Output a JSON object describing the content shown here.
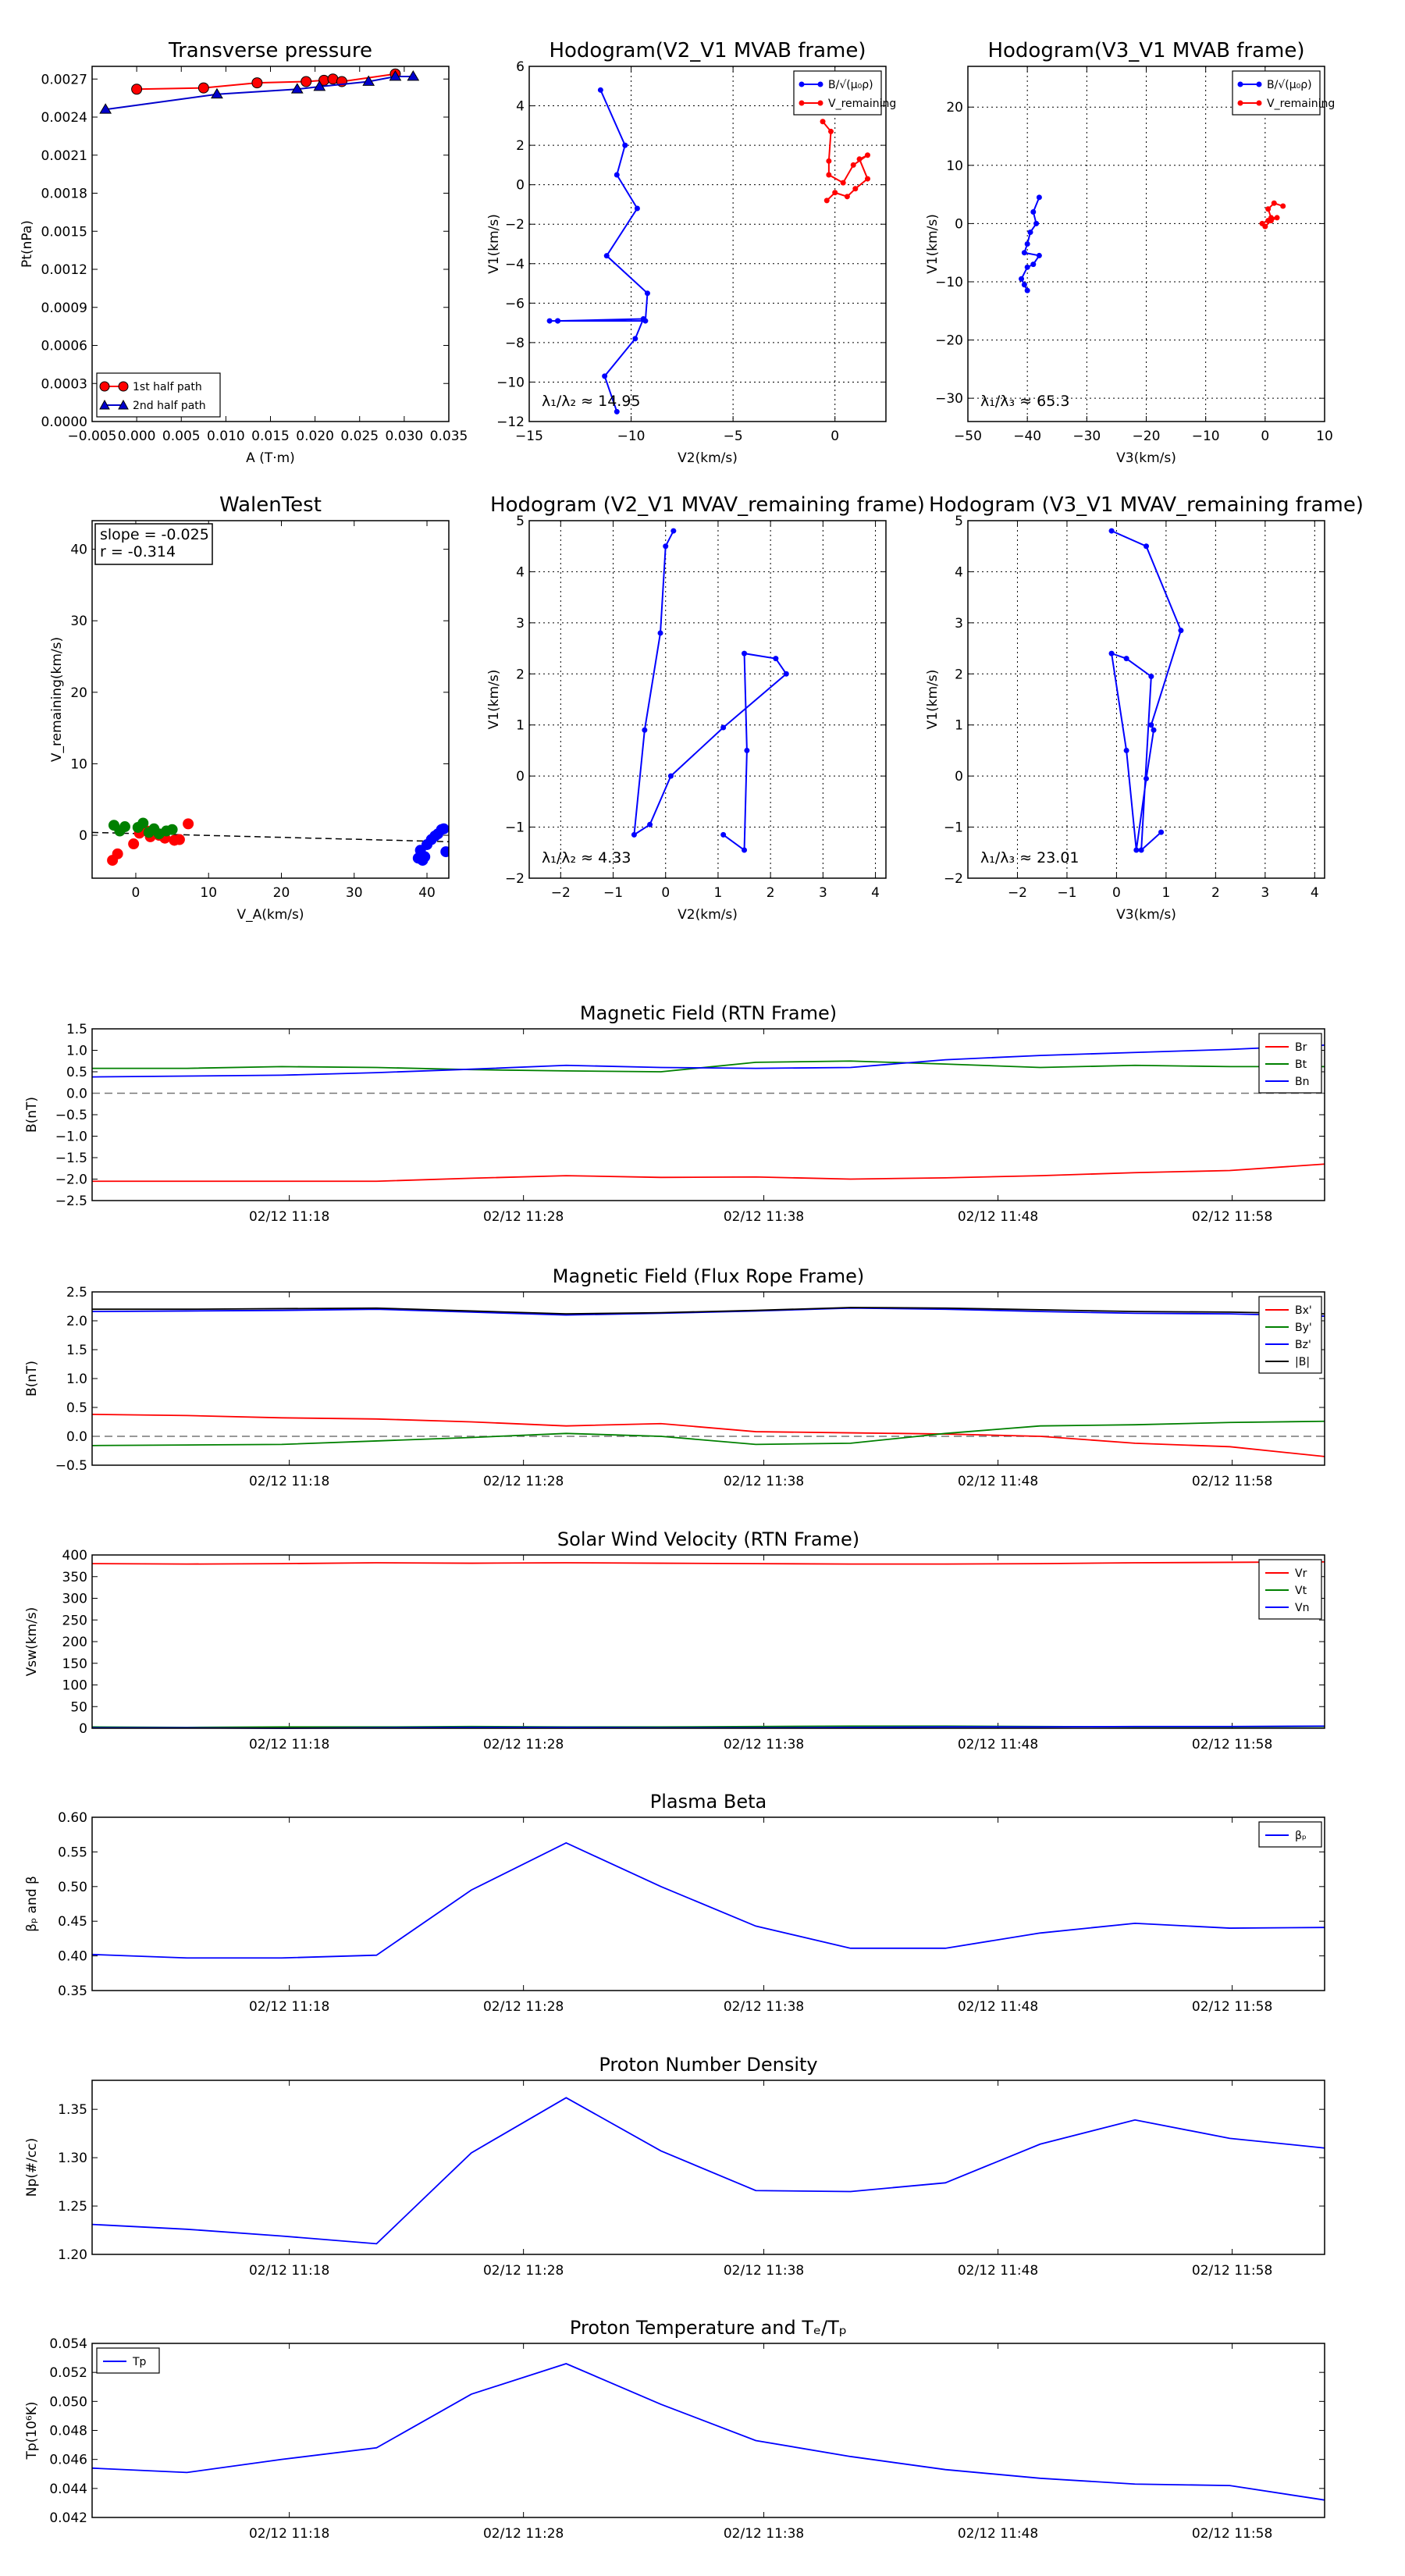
{
  "chart_data": [
    {
      "id": "tp",
      "type": "scatter",
      "title": "Transverse pressure",
      "xlabel": "A (T·m)",
      "ylabel": "Pt(nPa)",
      "xlim": [
        -0.005,
        0.035
      ],
      "ylim": [
        0.0,
        0.0028
      ],
      "xticks": [
        "−0.005",
        "0.000",
        "0.005",
        "0.010",
        "0.015",
        "0.020",
        "0.025",
        "0.030",
        "0.035"
      ],
      "yticks": [
        "0.0000",
        "0.0003",
        "0.0006",
        "0.0009",
        "0.0012",
        "0.0015",
        "0.0018",
        "0.0021",
        "0.0024",
        "0.0027"
      ],
      "legend": [
        "1st half path",
        "2nd half path"
      ],
      "series": [
        {
          "name": "1st half path",
          "color": "#ff0000",
          "marker": "circle",
          "x": [
            0.0,
            0.0075,
            0.0135,
            0.019,
            0.021,
            0.022,
            0.023,
            0.029
          ],
          "y": [
            0.00262,
            0.00263,
            0.00267,
            0.00268,
            0.00269,
            0.0027,
            0.00268,
            0.00274
          ]
        },
        {
          "name": "2nd half path",
          "color": "#0000cc",
          "marker": "triangle",
          "x": [
            -0.0035,
            0.009,
            0.018,
            0.0205,
            0.026,
            0.029,
            0.031
          ],
          "y": [
            0.00246,
            0.00258,
            0.00262,
            0.00264,
            0.00268,
            0.00272,
            0.00272
          ]
        }
      ]
    },
    {
      "id": "h1",
      "type": "line",
      "title": "Hodogram(V2_V1 MVAB frame)",
      "xlabel": "V2(km/s)",
      "ylabel": "V1(km/s)",
      "xlim": [
        -15,
        2.5
      ],
      "ylim": [
        -12,
        6
      ],
      "xticks": [
        "−15",
        "−10",
        "−5",
        "0"
      ],
      "yticks": [
        "−12",
        "−10",
        "−8",
        "−6",
        "−4",
        "−2",
        "0",
        "2",
        "4",
        "6"
      ],
      "annotation": "λ₁/λ₂ ≈ 14.95",
      "legend": [
        "B/√(μ₀ρ)",
        "V_remaining"
      ],
      "series": [
        {
          "name": "B/√(μ₀ρ)",
          "color": "#0000ff",
          "x": [
            -11.5,
            -10.3,
            -10.7,
            -9.7,
            -11.2,
            -9.2,
            -9.3,
            -13.6,
            -14.0,
            -13.6,
            -9.4,
            -9.8,
            -11.3,
            -10.7
          ],
          "y": [
            4.8,
            2.0,
            0.5,
            -1.2,
            -3.6,
            -5.5,
            -6.9,
            -6.9,
            -6.9,
            -6.9,
            -6.8,
            -7.8,
            -9.7,
            -11.5
          ]
        },
        {
          "name": "V_remaining",
          "color": "#ff0000",
          "x": [
            -0.6,
            -0.2,
            -0.3,
            -0.3,
            0.4,
            0.9,
            1.6,
            1.2,
            1.6,
            1.0,
            0.6,
            0.0,
            -0.4
          ],
          "y": [
            3.2,
            2.7,
            1.2,
            0.5,
            0.1,
            1.0,
            1.5,
            1.3,
            0.3,
            -0.2,
            -0.6,
            -0.4,
            -0.8
          ]
        }
      ]
    },
    {
      "id": "h2",
      "type": "line",
      "title": "Hodogram(V3_V1 MVAB frame)",
      "xlabel": "V3(km/s)",
      "ylabel": "V1(km/s)",
      "xlim": [
        -50,
        10
      ],
      "ylim": [
        -34,
        27
      ],
      "xticks": [
        "−50",
        "−40",
        "−30",
        "−20",
        "−10",
        "0",
        "10"
      ],
      "yticks": [
        "−30",
        "−20",
        "−10",
        "0",
        "10",
        "20"
      ],
      "annotation": "λ₁/λ₃ ≈ 65.3",
      "legend": [
        "B/√(μ₀ρ)",
        "V_remaining"
      ],
      "series": [
        {
          "name": "B/√(μ₀ρ)",
          "color": "#0000ff",
          "x": [
            -38,
            -39,
            -38.5,
            -39.5,
            -40,
            -40.5,
            -38,
            -39,
            -40,
            -41,
            -40.5,
            -40
          ],
          "y": [
            4.5,
            2,
            0,
            -1.5,
            -3.5,
            -5,
            -5.5,
            -7,
            -7.5,
            -9.5,
            -10.5,
            -11.5
          ]
        },
        {
          "name": "V_remaining",
          "color": "#ff0000",
          "x": [
            3,
            1.5,
            0.5,
            1,
            2,
            1,
            0,
            -0.5,
            0.5
          ],
          "y": [
            3,
            3.5,
            2.5,
            1,
            1,
            0.5,
            -0.5,
            0,
            0.5
          ]
        }
      ]
    },
    {
      "id": "walen",
      "type": "scatter",
      "title": "WalenTest",
      "xlabel": "V_A(km/s)",
      "ylabel": "V_remaining(km/s)",
      "xlim": [
        -6,
        43
      ],
      "ylim": [
        -6,
        44
      ],
      "xticks": [
        "0",
        "10",
        "20",
        "30",
        "40"
      ],
      "yticks": [
        "0",
        "10",
        "20",
        "30",
        "40"
      ],
      "box_lines": [
        "slope = -0.025",
        "r = -0.314"
      ],
      "fit": {
        "x": [
          -6,
          43
        ],
        "y": [
          0.4,
          -0.9
        ]
      },
      "series": [
        {
          "name": "red",
          "color": "#ff0000",
          "x": [
            -3.2,
            -2.5,
            -0.3,
            0.5,
            1.5,
            2.0,
            3.2,
            4.0,
            5.3,
            6.0,
            7.2
          ],
          "y": [
            -3.5,
            -2.6,
            -1.2,
            0.3,
            0.6,
            -0.2,
            0.0,
            -0.4,
            -0.7,
            -0.6,
            1.6
          ]
        },
        {
          "name": "green",
          "color": "#008000",
          "x": [
            -3.0,
            -2.2,
            -1.5,
            0.3,
            1.0,
            1.8,
            2.5,
            3.2,
            4.2,
            5.0
          ],
          "y": [
            1.4,
            0.6,
            1.2,
            1.1,
            1.7,
            0.4,
            0.9,
            0.2,
            0.6,
            0.8
          ]
        },
        {
          "name": "blue",
          "color": "#0000ff",
          "x": [
            38.8,
            39.1,
            39.7,
            40.0,
            40.6,
            41.1,
            41.5,
            42.0,
            42.3,
            42.6,
            39.4
          ],
          "y": [
            -3.2,
            -2.1,
            -3.0,
            -1.3,
            -0.6,
            -0.1,
            0.2,
            0.8,
            0.9,
            -2.3,
            -3.5
          ]
        }
      ]
    },
    {
      "id": "h3",
      "type": "line",
      "title": "Hodogram (V2_V1 MVAV_remaining frame)",
      "xlabel": "V2(km/s)",
      "ylabel": "V1(km/s)",
      "xlim": [
        -2.6,
        4.2
      ],
      "ylim": [
        -2,
        5
      ],
      "xticks": [
        "−2",
        "−1",
        "0",
        "1",
        "2",
        "3",
        "4"
      ],
      "yticks": [
        "−2",
        "−1",
        "0",
        "1",
        "2",
        "3",
        "4",
        "5"
      ],
      "annotation": "λ₁/λ₂ ≈ 4.33",
      "series": [
        {
          "name": "V_remaining",
          "color": "#0000ff",
          "x": [
            0.15,
            0.0,
            -0.1,
            -0.4,
            -0.6,
            -0.3,
            0.1,
            1.1,
            2.3,
            2.1,
            1.5,
            1.55,
            1.5,
            1.1
          ],
          "y": [
            4.8,
            4.5,
            2.8,
            0.9,
            -1.15,
            -0.95,
            0.0,
            0.95,
            2.0,
            2.3,
            2.4,
            0.5,
            -1.45,
            -1.15
          ]
        }
      ]
    },
    {
      "id": "h4",
      "type": "line",
      "title": "Hodogram (V3_V1 MVAV_remaining frame)",
      "xlabel": "V3(km/s)",
      "ylabel": "V1(km/s)",
      "xlim": [
        -3,
        4.2
      ],
      "ylim": [
        -2,
        5
      ],
      "xticks": [
        "−2",
        "−1",
        "0",
        "1",
        "2",
        "3",
        "4"
      ],
      "yticks": [
        "−2",
        "−1",
        "0",
        "1",
        "2",
        "3",
        "4",
        "5"
      ],
      "annotation": "λ₁/λ₃ ≈ 23.01",
      "series": [
        {
          "name": "V_remaining",
          "color": "#0000ff",
          "x": [
            -0.1,
            0.6,
            1.3,
            0.7,
            0.75,
            0.6,
            0.4,
            0.2,
            -0.1,
            0.2,
            0.7,
            0.5,
            0.9
          ],
          "y": [
            4.8,
            4.5,
            2.85,
            1.0,
            0.9,
            -0.05,
            -1.45,
            0.5,
            2.4,
            2.3,
            1.95,
            -1.45,
            -1.1
          ]
        }
      ]
    },
    {
      "id": "ts1",
      "type": "line",
      "title": "Magnetic Field (RTN Frame)",
      "ylabel": "B(nT)",
      "ylim": [
        -2.5,
        1.5
      ],
      "yticks": [
        "−2.5",
        "−2.0",
        "−1.5",
        "−1.0",
        "−0.5",
        "0.0",
        "0.5",
        "1.0",
        "1.5"
      ],
      "xticks": [
        "02/12 11:18",
        "02/12 11:28",
        "02/12 11:38",
        "02/12 11:48",
        "02/12 11:58"
      ],
      "zero_line": true,
      "legend": [
        "Br",
        "Bt",
        "Bn"
      ],
      "series": [
        {
          "name": "Br",
          "color": "#ff0000",
          "values": [
            -2.05,
            -2.05,
            -2.05,
            -2.05,
            -1.98,
            -1.92,
            -1.96,
            -1.95,
            -2.0,
            -1.97,
            -1.92,
            -1.85,
            -1.8,
            -1.65
          ]
        },
        {
          "name": "Bt",
          "color": "#008000",
          "values": [
            0.58,
            0.58,
            0.62,
            0.6,
            0.55,
            0.52,
            0.5,
            0.72,
            0.75,
            0.68,
            0.6,
            0.65,
            0.62,
            0.62
          ]
        },
        {
          "name": "Bn",
          "color": "#0000ff",
          "values": [
            0.38,
            0.4,
            0.42,
            0.48,
            0.56,
            0.65,
            0.6,
            0.58,
            0.6,
            0.78,
            0.88,
            0.95,
            1.02,
            1.12
          ]
        }
      ]
    },
    {
      "id": "ts2",
      "type": "line",
      "title": "Magnetic Field (Flux Rope Frame)",
      "ylabel": "B(nT)",
      "ylim": [
        -0.5,
        2.5
      ],
      "yticks": [
        "−0.5",
        "0.0",
        "0.5",
        "1.0",
        "1.5",
        "2.0",
        "2.5"
      ],
      "xticks": [
        "02/12 11:18",
        "02/12 11:28",
        "02/12 11:38",
        "02/12 11:48",
        "02/12 11:58"
      ],
      "zero_line": true,
      "legend": [
        "Bx'",
        "By'",
        "Bz'",
        "|B|"
      ],
      "series": [
        {
          "name": "Bx'",
          "color": "#ff0000",
          "values": [
            0.38,
            0.36,
            0.32,
            0.3,
            0.25,
            0.18,
            0.22,
            0.08,
            0.06,
            0.04,
            0.0,
            -0.12,
            -0.18,
            -0.35
          ]
        },
        {
          "name": "By'",
          "color": "#008000",
          "values": [
            -0.16,
            -0.15,
            -0.14,
            -0.08,
            -0.02,
            0.05,
            0.0,
            -0.14,
            -0.12,
            0.05,
            0.18,
            0.2,
            0.24,
            0.26
          ]
        },
        {
          "name": "Bz'",
          "color": "#0000ff",
          "values": [
            2.16,
            2.17,
            2.18,
            2.2,
            2.15,
            2.1,
            2.13,
            2.17,
            2.22,
            2.2,
            2.16,
            2.13,
            2.12,
            2.08
          ]
        },
        {
          "name": "|B|",
          "color": "#000000",
          "values": [
            2.2,
            2.2,
            2.21,
            2.22,
            2.17,
            2.12,
            2.14,
            2.18,
            2.23,
            2.22,
            2.19,
            2.16,
            2.15,
            2.12
          ]
        }
      ]
    },
    {
      "id": "ts3",
      "type": "line",
      "title": "Solar Wind Velocity (RTN Frame)",
      "ylabel": "Vsw(km/s)",
      "ylim": [
        0,
        400
      ],
      "yticks": [
        "0",
        "50",
        "100",
        "150",
        "200",
        "250",
        "300",
        "350",
        "400"
      ],
      "xticks": [
        "02/12 11:18",
        "02/12 11:28",
        "02/12 11:38",
        "02/12 11:48",
        "02/12 11:58"
      ],
      "legend": [
        "Vr",
        "Vt",
        "Vn"
      ],
      "series": [
        {
          "name": "Vr",
          "color": "#ff0000",
          "values": [
            380,
            379,
            380,
            382,
            381,
            382,
            381,
            380,
            379,
            379,
            380,
            382,
            383,
            384
          ]
        },
        {
          "name": "Vt",
          "color": "#008000",
          "values": [
            3,
            2,
            3,
            3,
            4,
            3,
            3,
            4,
            5,
            5,
            4,
            3,
            3,
            4
          ]
        },
        {
          "name": "Vn",
          "color": "#0000ff",
          "values": [
            1,
            1,
            0,
            1,
            2,
            2,
            1,
            1,
            2,
            3,
            3,
            4,
            4,
            5
          ]
        }
      ]
    },
    {
      "id": "ts4",
      "type": "line",
      "title": "Plasma Beta",
      "ylabel": "βₚ and β",
      "ylim": [
        0.35,
        0.6
      ],
      "yticks": [
        "0.35",
        "0.40",
        "0.45",
        "0.50",
        "0.55",
        "0.60"
      ],
      "xticks": [
        "02/12 11:18",
        "02/12 11:28",
        "02/12 11:38",
        "02/12 11:48",
        "02/12 11:58"
      ],
      "legend": [
        "βₚ"
      ],
      "series": [
        {
          "name": "βₚ",
          "color": "#0000ff",
          "values": [
            0.402,
            0.397,
            0.397,
            0.401,
            0.495,
            0.563,
            0.5,
            0.443,
            0.411,
            0.411,
            0.433,
            0.447,
            0.44,
            0.441
          ]
        }
      ]
    },
    {
      "id": "ts5",
      "type": "line",
      "title": "Proton Number Density",
      "ylabel": "Np(#/cc)",
      "ylim": [
        1.2,
        1.38
      ],
      "yticks": [
        "1.20",
        "1.25",
        "1.30",
        "1.35"
      ],
      "xticks": [
        "02/12 11:18",
        "02/12 11:28",
        "02/12 11:38",
        "02/12 11:48",
        "02/12 11:58"
      ],
      "series": [
        {
          "name": "Np",
          "color": "#0000ff",
          "values": [
            1.231,
            1.226,
            1.219,
            1.211,
            1.305,
            1.362,
            1.307,
            1.266,
            1.265,
            1.274,
            1.314,
            1.339,
            1.32,
            1.31
          ]
        }
      ]
    },
    {
      "id": "ts6",
      "type": "line",
      "title": "Proton Temperature and Tₑ/Tₚ",
      "ylabel": "Tp(10⁶K)",
      "ylim": [
        0.042,
        0.054
      ],
      "yticks": [
        "0.042",
        "0.044",
        "0.046",
        "0.048",
        "0.050",
        "0.052",
        "0.054"
      ],
      "xticks": [
        "02/12 11:18",
        "02/12 11:28",
        "02/12 11:38",
        "02/12 11:48",
        "02/12 11:58"
      ],
      "legend": [
        "Tp"
      ],
      "series": [
        {
          "name": "Tp",
          "color": "#0000ff",
          "values": [
            0.0454,
            0.0451,
            0.046,
            0.0468,
            0.0505,
            0.0526,
            0.0498,
            0.0473,
            0.0462,
            0.0453,
            0.0447,
            0.0443,
            0.0442,
            0.0432
          ]
        }
      ]
    }
  ]
}
